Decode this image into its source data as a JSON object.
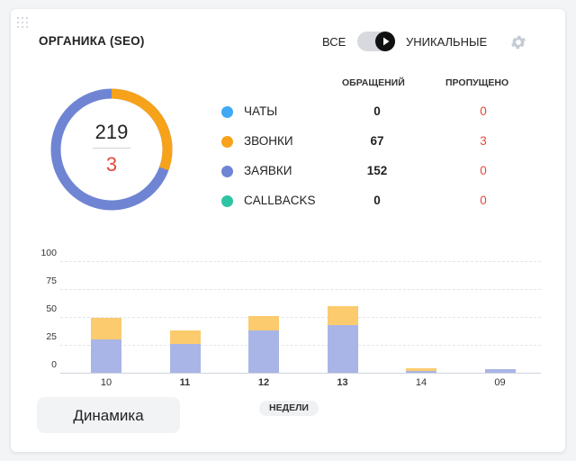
{
  "widget": {
    "title": "ОРГАНИКА (SEO)",
    "mode_left": "ВСЕ",
    "mode_right": "УНИКАЛЬНЫЕ",
    "toggle_state": "УНИКАЛЬНЫЕ",
    "icons": [
      "drag-handle-icon",
      "play-icon",
      "gear-icon"
    ]
  },
  "summary": {
    "total": "219",
    "missed": "3"
  },
  "table": {
    "headers": {
      "count": "ОБРАЩЕНИЙ",
      "missed": "ПРОПУЩЕНО"
    },
    "rows": [
      {
        "label": "ЧАТЫ",
        "count": "0",
        "missed": "0",
        "color": "#3fa9f5"
      },
      {
        "label": "ЗВОНКИ",
        "count": "67",
        "missed": "3",
        "color": "#f7a21b"
      },
      {
        "label": "ЗАЯВКИ",
        "count": "152",
        "missed": "0",
        "color": "#6f85d3"
      },
      {
        "label": "CALLBACKS",
        "count": "0",
        "missed": "0",
        "color": "#2dc4a4"
      }
    ]
  },
  "colors": {
    "missed": "#e5493a",
    "bar_calls": "#fbcb6e",
    "bar_requests": "#a9b5e6"
  },
  "chart_data": {
    "type": "bar",
    "stacked": true,
    "categories": [
      "10",
      "11",
      "12",
      "13",
      "14",
      "09"
    ],
    "series": [
      {
        "values": [
          30,
          26,
          38,
          43,
          2,
          3
        ]
      },
      {
        "values": [
          19,
          12,
          13,
          17,
          2,
          0
        ]
      }
    ],
    "yticks": [
      "100",
      "75",
      "50",
      "25",
      "0"
    ],
    "ylim": [
      0,
      100
    ],
    "xlabel": "НЕДЕЛИ",
    "grid": true,
    "bold_categories": [
      "11",
      "12",
      "13"
    ]
  },
  "buttons": {
    "dynamics": "Динамика"
  }
}
